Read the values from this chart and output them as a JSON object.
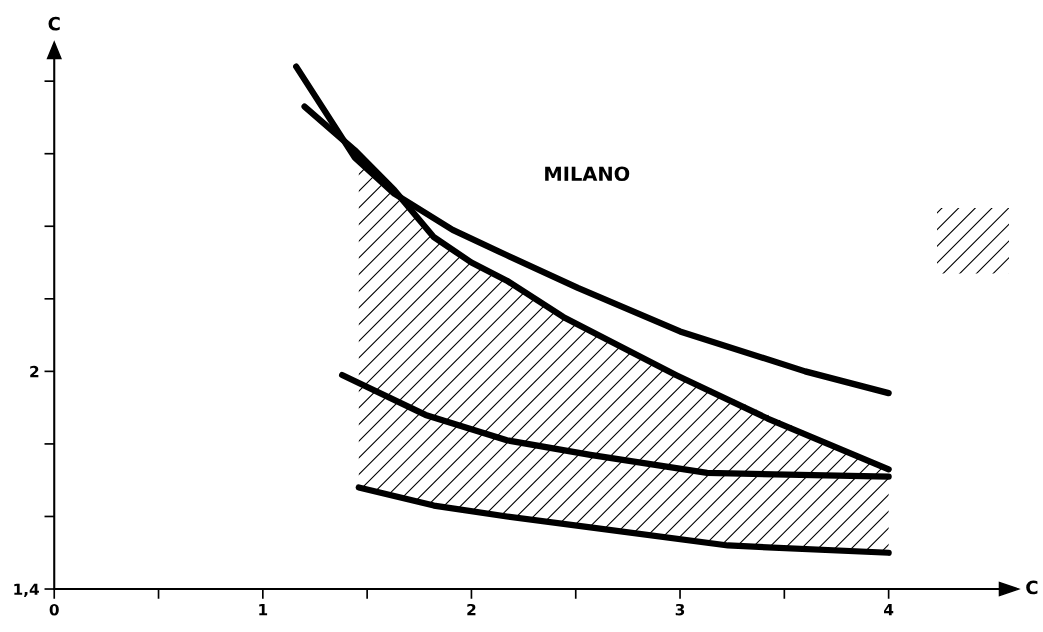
{
  "chart_data": {
    "type": "line",
    "xlabel": "C",
    "ylabel": "C",
    "annotations": [
      "MILANO"
    ],
    "xlim": [
      0,
      4.6
    ],
    "ylim": [
      1.4,
      2.9
    ],
    "xticks": [
      0,
      {
        "value": 0.5,
        "label": null
      },
      1,
      {
        "value": 1.5,
        "label": null
      },
      2,
      {
        "value": 2.5,
        "label": null
      },
      3,
      {
        "value": 3.5,
        "label": null
      },
      4
    ],
    "yticks": [
      {
        "value": 1.4,
        "label": "1,4"
      },
      {
        "value": 1.6,
        "label": null
      },
      {
        "value": 1.8,
        "label": null
      },
      2,
      {
        "value": 2.2,
        "label": null
      },
      {
        "value": 2.4,
        "label": null
      },
      {
        "value": 2.6,
        "label": null
      },
      {
        "value": 2.8,
        "label": null
      }
    ],
    "grid": false,
    "legend": false,
    "marker": "none",
    "line_style": "solid",
    "series": [
      {
        "color": "#000000",
        "x": [
          1.16,
          1.44,
          1.63,
          1.91,
          2.17,
          2.51,
          3.0,
          3.6,
          4.0
        ],
        "values": [
          2.84,
          2.59,
          2.49,
          2.39,
          2.32,
          2.23,
          2.11,
          2.0,
          1.94
        ]
      },
      {
        "color": "#000000",
        "x": [
          1.2,
          1.44,
          1.63,
          1.82,
          2.0,
          2.17,
          2.44,
          2.98,
          3.42,
          4.0
        ],
        "values": [
          2.73,
          2.61,
          2.5,
          2.37,
          2.3,
          2.25,
          2.15,
          1.99,
          1.87,
          1.73
        ]
      },
      {
        "color": "#000000",
        "x": [
          1.38,
          1.78,
          2.17,
          2.57,
          3.13,
          4.0
        ],
        "values": [
          1.99,
          1.88,
          1.81,
          1.77,
          1.72,
          1.71
        ]
      },
      {
        "color": "#000000",
        "x": [
          1.46,
          1.82,
          2.17,
          2.57,
          3.23,
          4.0
        ],
        "values": [
          1.68,
          1.63,
          1.6,
          1.57,
          1.52,
          1.5
        ],
        "lower": [
          1.68,
          1.63,
          1.6,
          1.57,
          1.52,
          1.5
        ],
        "upper": [
          2.6,
          2.37,
          2.25,
          2.11,
          1.93,
          1.73
        ]
      }
    ]
  }
}
